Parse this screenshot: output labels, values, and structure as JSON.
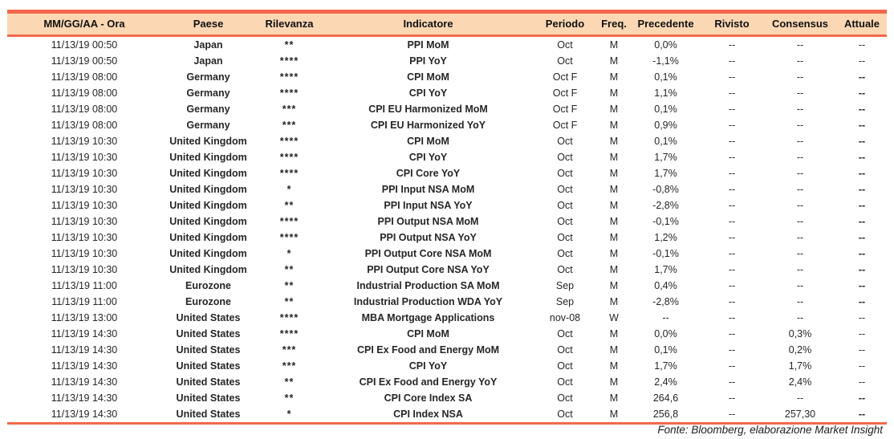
{
  "colors": {
    "accent": "#F4694C",
    "header_bg": "#FBD7B4",
    "stars": "#F4694C"
  },
  "footer": {
    "source": "Fonte: Bloomberg, elaborazione Market Insight"
  },
  "table": {
    "columns": [
      "MM/GG/AA - Ora",
      "Paese",
      "Rilevanza",
      "Indicatore",
      "Periodo",
      "Freq.",
      "Precedente",
      "Rivisto",
      "Consensus",
      "Attuale"
    ],
    "rows": [
      {
        "datetime": "11/13/19 00:50",
        "country": "Japan",
        "stars": 2,
        "indicator": "PPI MoM",
        "period": "Oct",
        "freq": "M",
        "previous": "0,0%",
        "revised": "--",
        "consensus": "--",
        "actual": "--",
        "actual_bold": false
      },
      {
        "datetime": "11/13/19 00:50",
        "country": "Japan",
        "stars": 4,
        "indicator": "PPI YoY",
        "period": "Oct",
        "freq": "M",
        "previous": "-1,1%",
        "revised": "--",
        "consensus": "--",
        "actual": "--",
        "actual_bold": false
      },
      {
        "datetime": "11/13/19 08:00",
        "country": "Germany",
        "stars": 4,
        "indicator": "CPI MoM",
        "period": "Oct F",
        "freq": "M",
        "previous": "0,1%",
        "revised": "--",
        "consensus": "--",
        "actual": "--",
        "actual_bold": true
      },
      {
        "datetime": "11/13/19 08:00",
        "country": "Germany",
        "stars": 4,
        "indicator": "CPI YoY",
        "period": "Oct F",
        "freq": "M",
        "previous": "1,1%",
        "revised": "--",
        "consensus": "--",
        "actual": "--",
        "actual_bold": true
      },
      {
        "datetime": "11/13/19 08:00",
        "country": "Germany",
        "stars": 3,
        "indicator": "CPI EU Harmonized MoM",
        "period": "Oct F",
        "freq": "M",
        "previous": "0,1%",
        "revised": "--",
        "consensus": "--",
        "actual": "--",
        "actual_bold": true
      },
      {
        "datetime": "11/13/19 08:00",
        "country": "Germany",
        "stars": 3,
        "indicator": "CPI EU Harmonized YoY",
        "period": "Oct F",
        "freq": "M",
        "previous": "0,9%",
        "revised": "--",
        "consensus": "--",
        "actual": "--",
        "actual_bold": true
      },
      {
        "datetime": "11/13/19 10:30",
        "country": "United Kingdom",
        "stars": 4,
        "indicator": "CPI MoM",
        "period": "Oct",
        "freq": "M",
        "previous": "0,1%",
        "revised": "--",
        "consensus": "--",
        "actual": "--",
        "actual_bold": true
      },
      {
        "datetime": "11/13/19 10:30",
        "country": "United Kingdom",
        "stars": 4,
        "indicator": "CPI YoY",
        "period": "Oct",
        "freq": "M",
        "previous": "1,7%",
        "revised": "--",
        "consensus": "--",
        "actual": "--",
        "actual_bold": true
      },
      {
        "datetime": "11/13/19 10:30",
        "country": "United Kingdom",
        "stars": 4,
        "indicator": "CPI Core YoY",
        "period": "Oct",
        "freq": "M",
        "previous": "1,7%",
        "revised": "--",
        "consensus": "--",
        "actual": "--",
        "actual_bold": true
      },
      {
        "datetime": "11/13/19 10:30",
        "country": "United Kingdom",
        "stars": 1,
        "indicator": "PPI Input NSA MoM",
        "period": "Oct",
        "freq": "M",
        "previous": "-0,8%",
        "revised": "--",
        "consensus": "--",
        "actual": "--",
        "actual_bold": true
      },
      {
        "datetime": "11/13/19 10:30",
        "country": "United Kingdom",
        "stars": 2,
        "indicator": "PPI Input NSA YoY",
        "period": "Oct",
        "freq": "M",
        "previous": "-2,8%",
        "revised": "--",
        "consensus": "--",
        "actual": "--",
        "actual_bold": true
      },
      {
        "datetime": "11/13/19 10:30",
        "country": "United Kingdom",
        "stars": 4,
        "indicator": "PPI Output NSA MoM",
        "period": "Oct",
        "freq": "M",
        "previous": "-0,1%",
        "revised": "--",
        "consensus": "--",
        "actual": "--",
        "actual_bold": true
      },
      {
        "datetime": "11/13/19 10:30",
        "country": "United Kingdom",
        "stars": 4,
        "indicator": "PPI Output NSA YoY",
        "period": "Oct",
        "freq": "M",
        "previous": "1,2%",
        "revised": "--",
        "consensus": "--",
        "actual": "--",
        "actual_bold": true
      },
      {
        "datetime": "11/13/19 10:30",
        "country": "United Kingdom",
        "stars": 1,
        "indicator": "PPI Output Core NSA MoM",
        "period": "Oct",
        "freq": "M",
        "previous": "-0,1%",
        "revised": "--",
        "consensus": "--",
        "actual": "--",
        "actual_bold": true
      },
      {
        "datetime": "11/13/19 10:30",
        "country": "United Kingdom",
        "stars": 2,
        "indicator": "PPI Output Core NSA YoY",
        "period": "Oct",
        "freq": "M",
        "previous": "1,7%",
        "revised": "--",
        "consensus": "--",
        "actual": "--",
        "actual_bold": true
      },
      {
        "datetime": "11/13/19 11:00",
        "country": "Eurozone",
        "stars": 2,
        "indicator": "Industrial Production SA MoM",
        "period": "Sep",
        "freq": "M",
        "previous": "0,4%",
        "revised": "--",
        "consensus": "--",
        "actual": "--",
        "actual_bold": true
      },
      {
        "datetime": "11/13/19 11:00",
        "country": "Eurozone",
        "stars": 2,
        "indicator": "Industrial Production WDA YoY",
        "period": "Sep",
        "freq": "M",
        "previous": "-2,8%",
        "revised": "--",
        "consensus": "--",
        "actual": "--",
        "actual_bold": true
      },
      {
        "datetime": "11/13/19 13:00",
        "country": "United States",
        "stars": 4,
        "indicator": "MBA Mortgage Applications",
        "period": "nov-08",
        "freq": "W",
        "previous": "--",
        "revised": "--",
        "consensus": "--",
        "actual": "--",
        "actual_bold": false
      },
      {
        "datetime": "11/13/19 14:30",
        "country": "United States",
        "stars": 4,
        "indicator": "CPI MoM",
        "period": "Oct",
        "freq": "M",
        "previous": "0,0%",
        "revised": "--",
        "consensus": "0,3%",
        "actual": "--",
        "actual_bold": false
      },
      {
        "datetime": "11/13/19 14:30",
        "country": "United States",
        "stars": 3,
        "indicator": "CPI Ex Food and Energy MoM",
        "period": "Oct",
        "freq": "M",
        "previous": "0,1%",
        "revised": "--",
        "consensus": "0,2%",
        "actual": "--",
        "actual_bold": false
      },
      {
        "datetime": "11/13/19 14:30",
        "country": "United States",
        "stars": 3,
        "indicator": "CPI YoY",
        "period": "Oct",
        "freq": "M",
        "previous": "1,7%",
        "revised": "--",
        "consensus": "1,7%",
        "actual": "--",
        "actual_bold": false
      },
      {
        "datetime": "11/13/19 14:30",
        "country": "United States",
        "stars": 2,
        "indicator": "CPI Ex Food and Energy YoY",
        "period": "Oct",
        "freq": "M",
        "previous": "2,4%",
        "revised": "--",
        "consensus": "2,4%",
        "actual": "--",
        "actual_bold": false
      },
      {
        "datetime": "11/13/19 14:30",
        "country": "United States",
        "stars": 2,
        "indicator": "CPI Core Index SA",
        "period": "Oct",
        "freq": "M",
        "previous": "264,6",
        "revised": "--",
        "consensus": "--",
        "actual": "--",
        "actual_bold": true
      },
      {
        "datetime": "11/13/19 14:30",
        "country": "United States",
        "stars": 1,
        "indicator": "CPI Index NSA",
        "period": "Oct",
        "freq": "M",
        "previous": "256,8",
        "revised": "--",
        "consensus": "257,30",
        "actual": "--",
        "actual_bold": true
      }
    ]
  }
}
